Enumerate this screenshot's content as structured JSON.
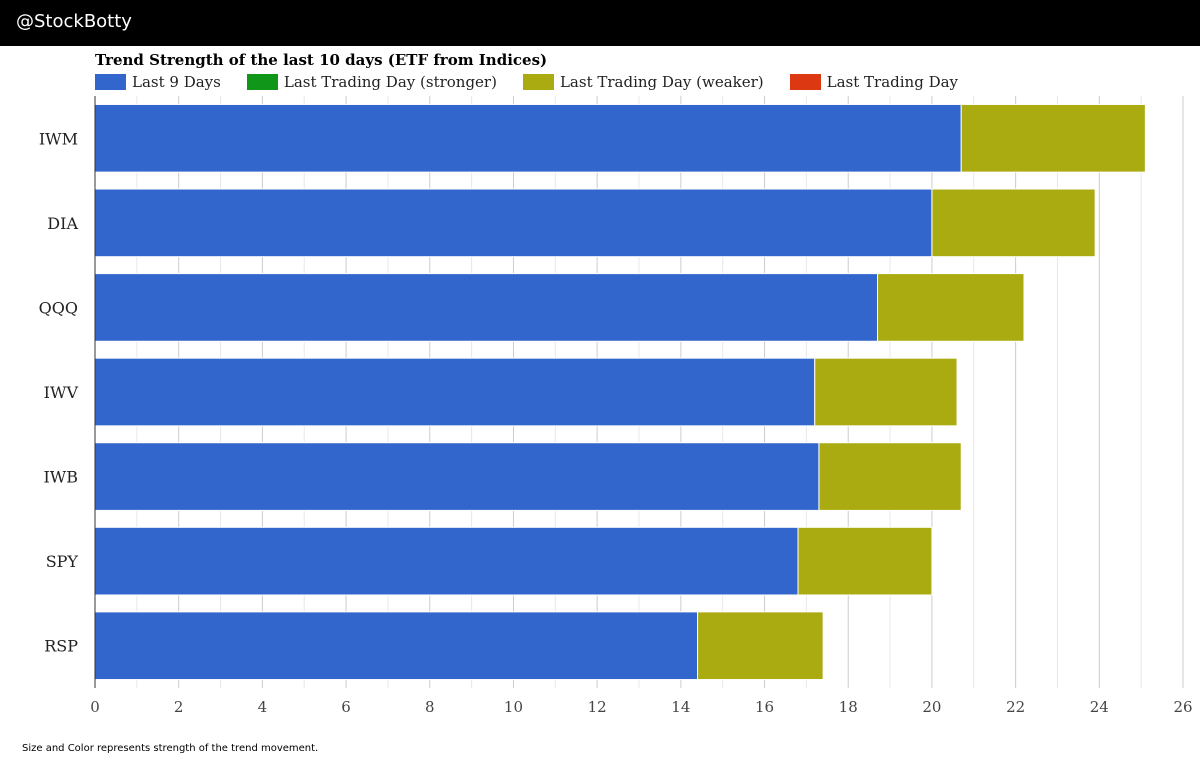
{
  "header": {
    "brand": "@StockBotty"
  },
  "colors": {
    "background": "#ffffff",
    "header_bg": "#000000",
    "grid_major": "#cccccc",
    "grid_minor": "#e8e8e8"
  },
  "footnote": "Size and Color represents strength of the trend movement.",
  "chart_data": {
    "type": "bar",
    "orientation": "horizontal",
    "stacked": true,
    "title": "Trend Strength of the last 10 days (ETF from Indices)",
    "xlabel": "",
    "ylabel": "",
    "xlim": [
      0,
      26
    ],
    "xticks": [
      0,
      2,
      4,
      6,
      8,
      10,
      12,
      14,
      16,
      18,
      20,
      22,
      24,
      26
    ],
    "grid": true,
    "legend_position": "top-left",
    "categories": [
      "IWM",
      "DIA",
      "QQQ",
      "IWV",
      "IWB",
      "SPY",
      "RSP"
    ],
    "legend": [
      {
        "name": "Last 9 Days",
        "color": "#3366cc"
      },
      {
        "name": "Last Trading Day (stronger)",
        "color": "#109618"
      },
      {
        "name": "Last Trading Day (weaker)",
        "color": "#aaaa11"
      },
      {
        "name": "Last Trading Day",
        "color": "#dc3912"
      }
    ],
    "series": [
      {
        "name": "Last 9 Days",
        "color": "#3366cc",
        "values": [
          20.7,
          20.0,
          18.7,
          17.2,
          17.3,
          16.8,
          14.4
        ]
      },
      {
        "name": "Last Trading Day (weaker)",
        "color": "#aaaa11",
        "values": [
          4.4,
          3.9,
          3.5,
          3.4,
          3.4,
          3.2,
          3.0
        ]
      }
    ]
  }
}
